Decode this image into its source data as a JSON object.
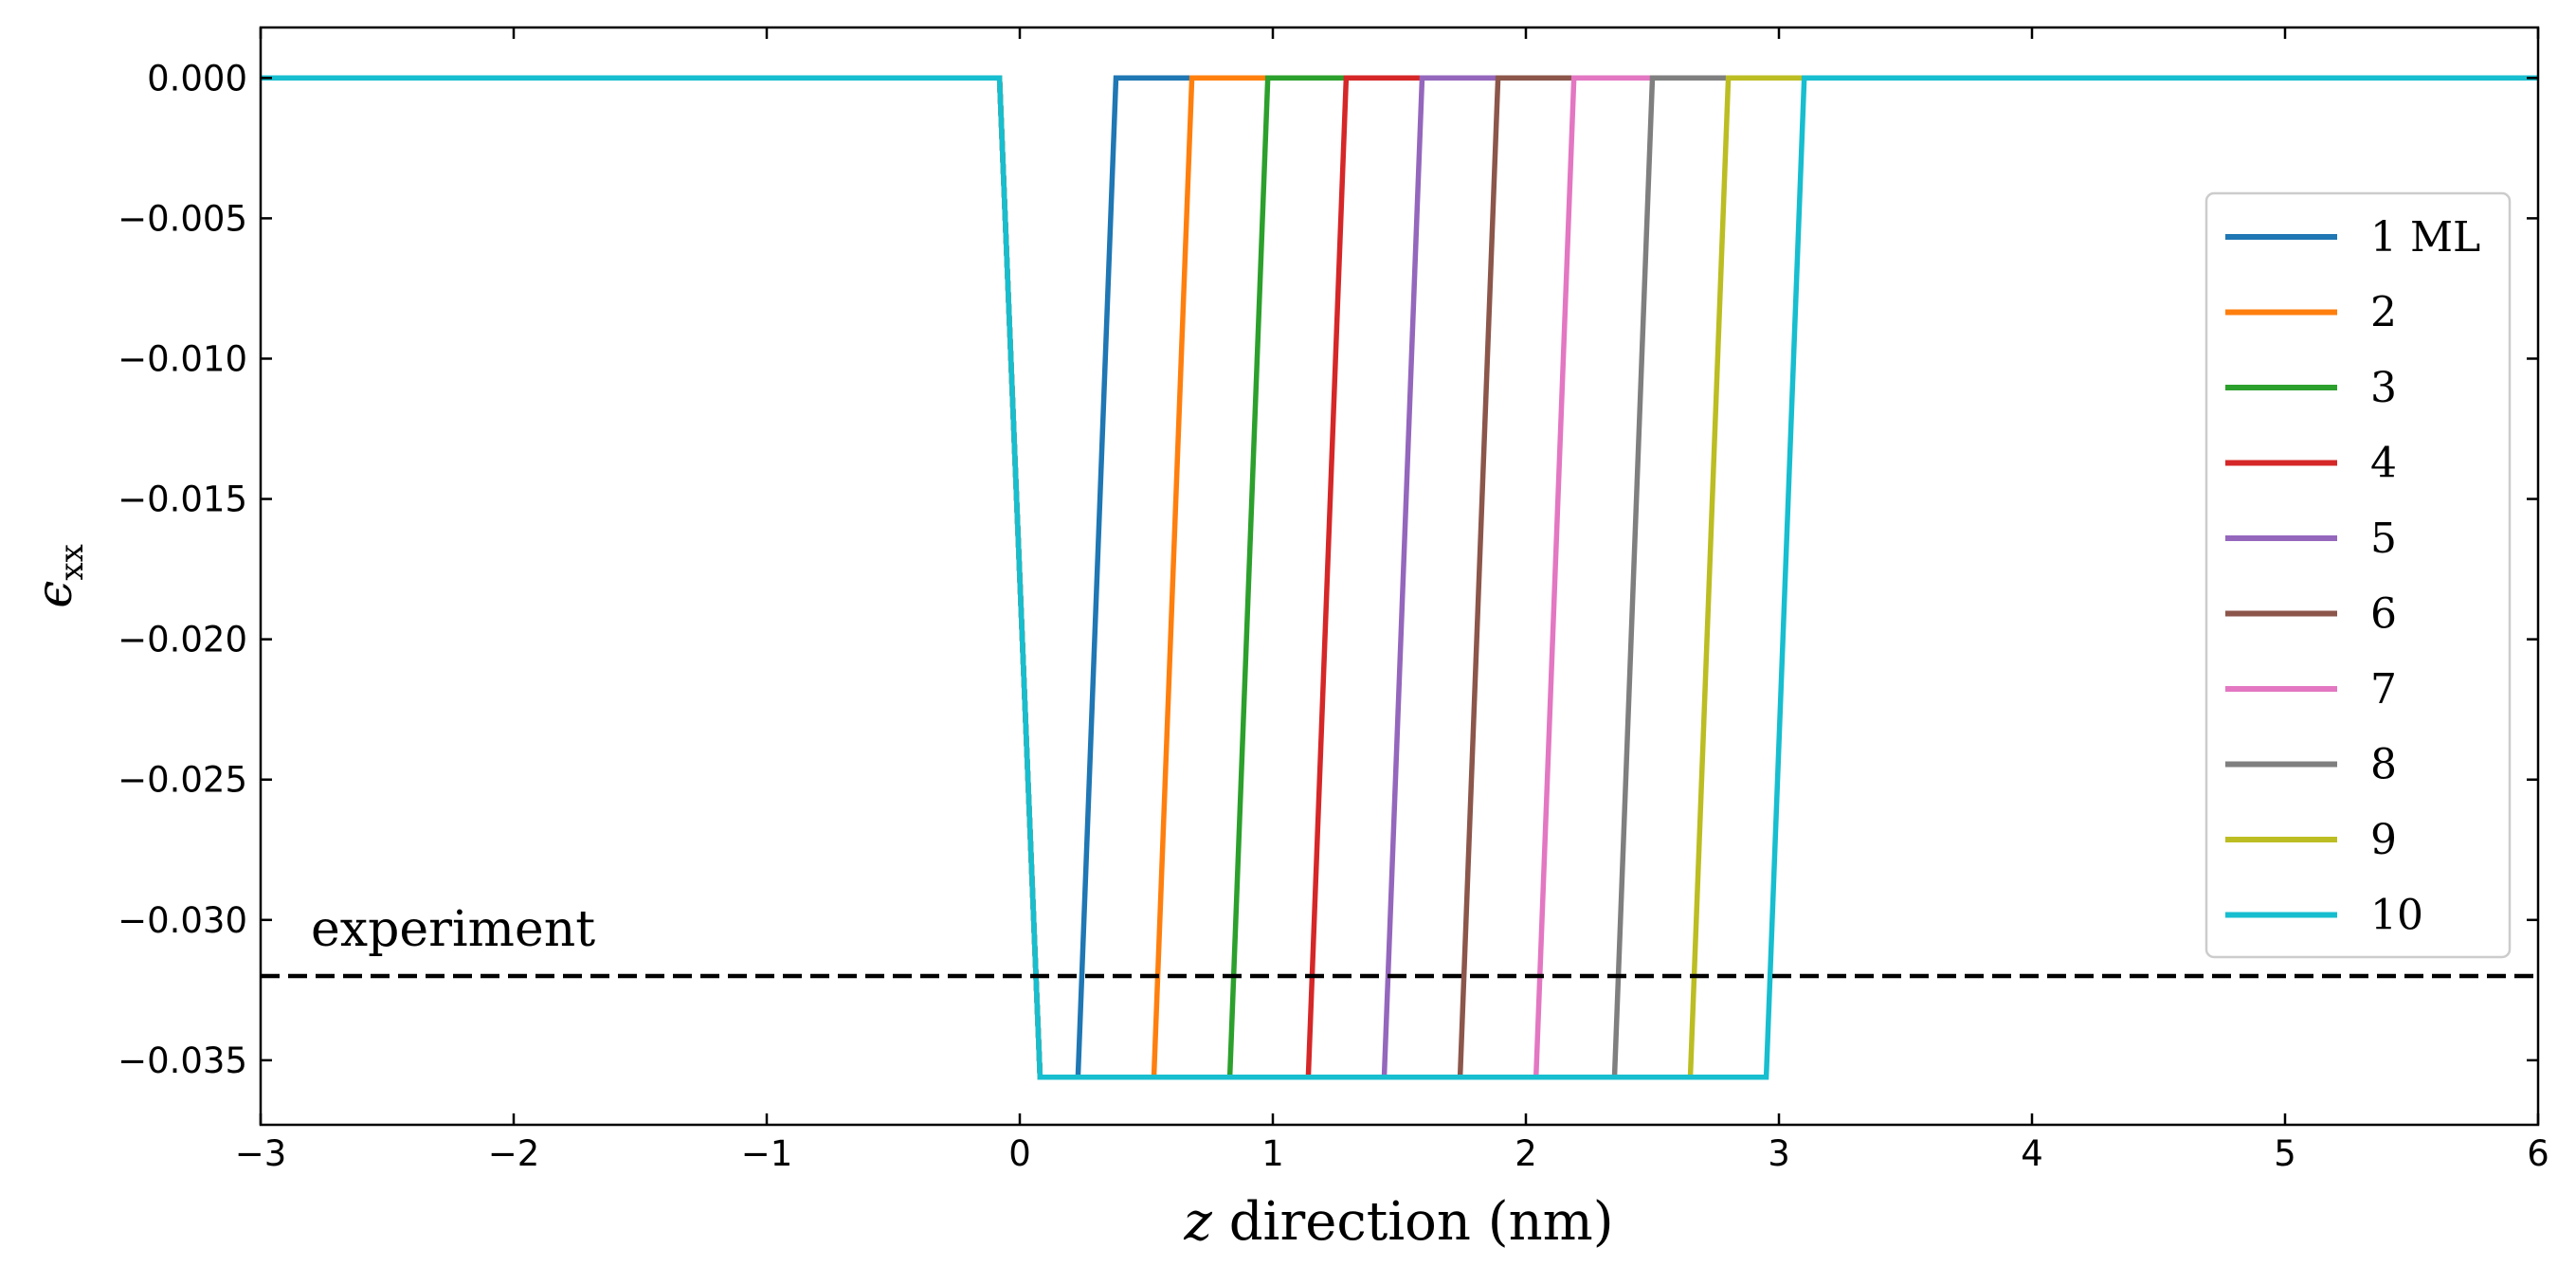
{
  "chart_data": {
    "type": "line",
    "xlabel_italic": "z",
    "xlabel_rest": " direction (nm)",
    "ylabel_symbol": "ϵ",
    "ylabel_sub": "xx",
    "xlim": [
      -3,
      6
    ],
    "ylim": [
      -0.0373,
      0.0018
    ],
    "xticks": [
      -3,
      -2,
      -1,
      0,
      1,
      2,
      3,
      4,
      5,
      6
    ],
    "xtick_labels": [
      "−3",
      "−2",
      "−1",
      "0",
      "1",
      "2",
      "3",
      "4",
      "5",
      "6"
    ],
    "yticks": [
      0.0,
      -0.005,
      -0.01,
      -0.015,
      -0.02,
      -0.025,
      -0.03,
      -0.035
    ],
    "ytick_labels": [
      "0.000",
      "−0.005",
      "−0.010",
      "−0.015",
      "−0.020",
      "−0.025",
      "−0.030",
      "−0.035"
    ],
    "grid": false,
    "legend_placement": "right",
    "reference_line": {
      "y": -0.032,
      "style": "dashed",
      "color": "#000000",
      "label": "experiment"
    },
    "series": [
      {
        "name": "1 ML",
        "color": "#1f77b4",
        "x": [
          -3,
          -0.08,
          0.08,
          0.23,
          0.38,
          6
        ],
        "y": [
          0,
          0,
          -0.0356,
          -0.0356,
          0,
          0
        ]
      },
      {
        "name": "2",
        "color": "#ff7f0e",
        "x": [
          -3,
          -0.08,
          0.08,
          0.53,
          0.68,
          6
        ],
        "y": [
          0,
          0,
          -0.0356,
          -0.0356,
          0,
          0
        ]
      },
      {
        "name": "3",
        "color": "#2ca02c",
        "x": [
          -3,
          -0.08,
          0.08,
          0.83,
          0.98,
          6
        ],
        "y": [
          0,
          0,
          -0.0356,
          -0.0356,
          0,
          0
        ]
      },
      {
        "name": "4",
        "color": "#d62728",
        "x": [
          -3,
          -0.08,
          0.08,
          1.14,
          1.29,
          6
        ],
        "y": [
          0,
          0,
          -0.0356,
          -0.0356,
          0,
          0
        ]
      },
      {
        "name": "5",
        "color": "#9467bd",
        "x": [
          -3,
          -0.08,
          0.08,
          1.44,
          1.59,
          6
        ],
        "y": [
          0,
          0,
          -0.0356,
          -0.0356,
          0,
          0
        ]
      },
      {
        "name": "6",
        "color": "#8c564b",
        "x": [
          -3,
          -0.08,
          0.08,
          1.74,
          1.89,
          6
        ],
        "y": [
          0,
          0,
          -0.0356,
          -0.0356,
          0,
          0
        ]
      },
      {
        "name": "7",
        "color": "#e377c2",
        "x": [
          -3,
          -0.08,
          0.08,
          2.04,
          2.19,
          6
        ],
        "y": [
          0,
          0,
          -0.0356,
          -0.0356,
          0,
          0
        ]
      },
      {
        "name": "8",
        "color": "#7f7f7f",
        "x": [
          -3,
          -0.08,
          0.08,
          2.35,
          2.5,
          6
        ],
        "y": [
          0,
          0,
          -0.0356,
          -0.0356,
          0,
          0
        ]
      },
      {
        "name": "9",
        "color": "#bcbd22",
        "x": [
          -3,
          -0.08,
          0.08,
          2.65,
          2.8,
          6
        ],
        "y": [
          0,
          0,
          -0.0356,
          -0.0356,
          0,
          0
        ]
      },
      {
        "name": "10",
        "color": "#17becf",
        "x": [
          -3,
          -0.08,
          0.08,
          2.95,
          3.1,
          6
        ],
        "y": [
          0,
          0,
          -0.0356,
          -0.0356,
          0,
          0
        ]
      }
    ]
  }
}
